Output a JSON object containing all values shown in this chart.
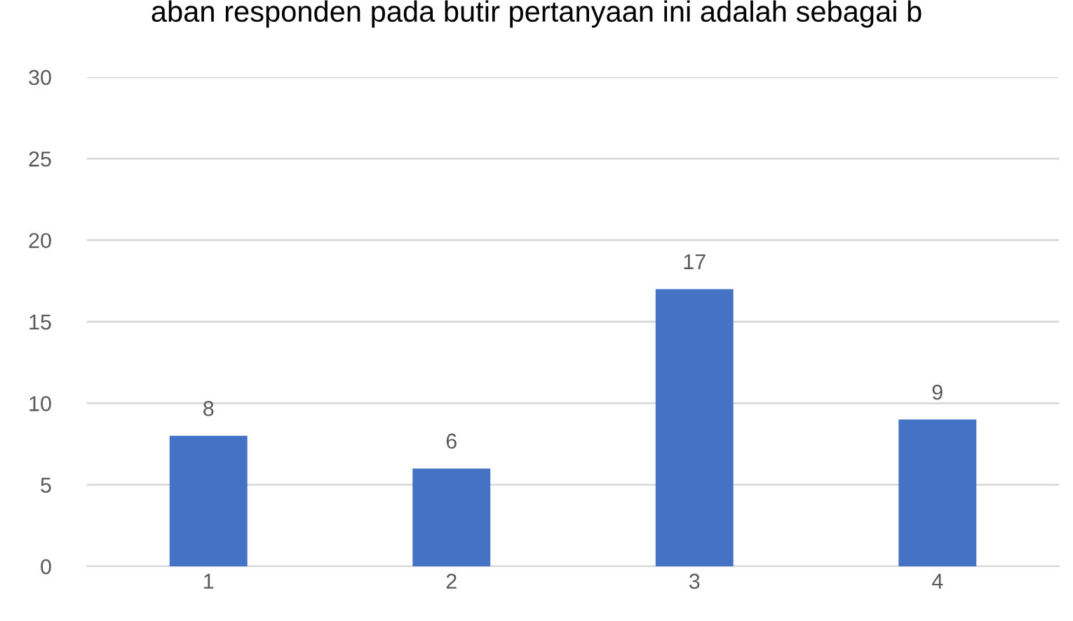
{
  "chart_data": {
    "type": "bar",
    "title": "aban responden pada butir pertanyaan ini adalah sebagai b",
    "categories": [
      "1",
      "2",
      "3",
      "4"
    ],
    "values": [
      8,
      6,
      17,
      9
    ],
    "color": "#4472c4",
    "ylim": [
      0,
      30
    ],
    "yticks": [
      0,
      5,
      10,
      15,
      20,
      25,
      30
    ],
    "grid": "y",
    "data_labels": true
  }
}
